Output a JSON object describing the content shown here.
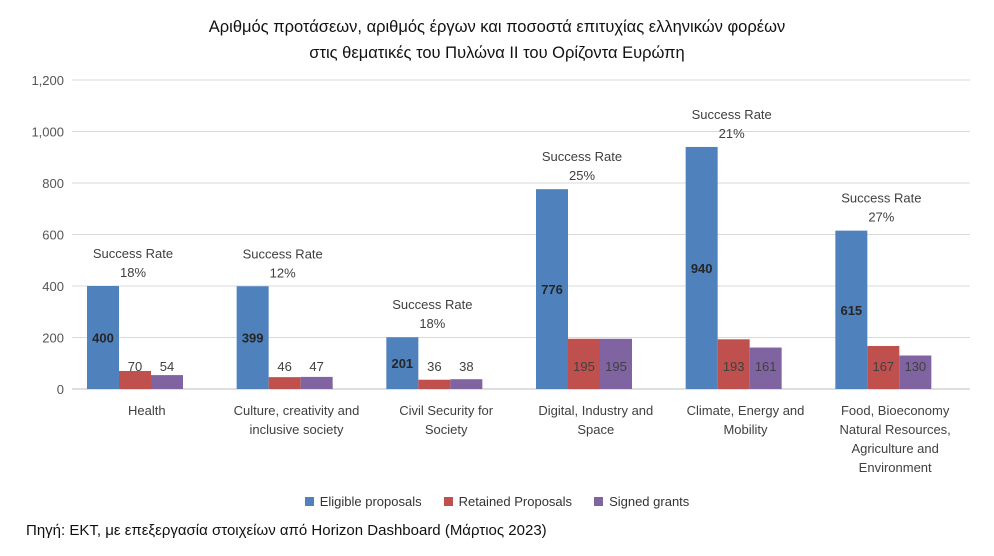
{
  "title_line1": "Αριθμός προτάσεων, αριθμός έργων και ποσοστά επιτυχίας ελληνικών φορέων",
  "title_line2": "στις θεματικές του Πυλώνα ΙΙ του Ορίζοντα Ευρώπη",
  "source": "Πηγή: ΕΚΤ, με επεξεργασία στοιχείων από Horizon Dashboard (Μάρτιος 2023)",
  "colors": {
    "eligible": "#4f81bd",
    "retained": "#c0504d",
    "signed": "#8064a2",
    "grid": "#d9d9d9",
    "axis": "#bfbfbf"
  },
  "chart_data": {
    "type": "bar",
    "title": "Αριθμός προτάσεων, αριθμός έργων και ποσοστά επιτυχίας ελληνικών φορέων στις θεματικές του Πυλώνα ΙΙ του Ορίζοντα Ευρώπη",
    "ylim": [
      0,
      1200
    ],
    "yticks": [
      0,
      200,
      400,
      600,
      800,
      1000,
      1200
    ],
    "ytick_labels": [
      "0",
      "200",
      "400",
      "600",
      "800",
      "1,000",
      "1,200"
    ],
    "grid": true,
    "legend_position": "bottom",
    "categories": [
      [
        "Health"
      ],
      [
        "Culture, creativity and",
        "inclusive society"
      ],
      [
        "Civil Security for",
        "Society"
      ],
      [
        "Digital, Industry and",
        "Space"
      ],
      [
        "Climate, Energy and",
        "Mobility"
      ],
      [
        "Food, Bioeconomy",
        "Natural Resources,",
        "Agriculture and",
        "Environment"
      ]
    ],
    "series": [
      {
        "name": "Eligible proposals",
        "values": [
          400,
          399,
          201,
          776,
          940,
          615
        ]
      },
      {
        "name": "Retained Proposals",
        "values": [
          70,
          46,
          36,
          195,
          193,
          167
        ]
      },
      {
        "name": "Signed grants",
        "values": [
          54,
          47,
          38,
          195,
          161,
          130
        ]
      }
    ],
    "annotation_label": "Success Rate",
    "success_rates": [
      "18%",
      "12%",
      "18%",
      "25%",
      "21%",
      "27%"
    ]
  }
}
